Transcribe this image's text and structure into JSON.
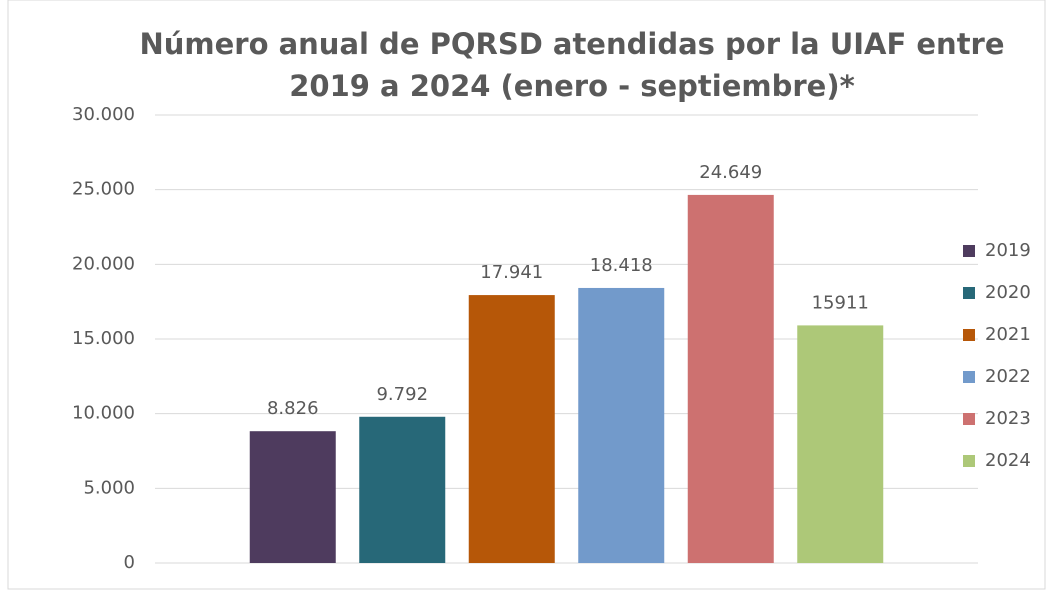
{
  "chart_data": {
    "type": "bar",
    "title": [
      "Número anual de PQRSD atendidas por la UIAF entre",
      "2019 a 2024 (enero - septiembre)*"
    ],
    "series": [
      {
        "name": "2019",
        "color": "#4e3b5e",
        "values": [
          8826
        ],
        "value_labels": [
          "8.826"
        ]
      },
      {
        "name": "2020",
        "color": "#276878",
        "values": [
          9792
        ],
        "value_labels": [
          "9.792"
        ]
      },
      {
        "name": "2021",
        "color": "#b65708",
        "values": [
          17941
        ],
        "value_labels": [
          "17.941"
        ]
      },
      {
        "name": "2022",
        "color": "#729acb",
        "values": [
          18418
        ],
        "value_labels": [
          "18.418"
        ]
      },
      {
        "name": "2023",
        "color": "#cd7170",
        "values": [
          24649
        ],
        "value_labels": [
          "24.649"
        ]
      },
      {
        "name": "2024",
        "color": "#adc878",
        "values": [
          15911
        ],
        "value_labels": [
          "15911"
        ]
      }
    ],
    "ylim": [
      0,
      30000
    ],
    "yticks": [
      0,
      {
        "value": 5000,
        "label": "5.000"
      },
      {
        "value": 10000,
        "label": "10.000"
      },
      {
        "value": 15000,
        "label": "15.000"
      },
      {
        "value": 20000,
        "label": "20.000"
      },
      {
        "value": 25000,
        "label": "25.000"
      },
      {
        "value": 30000,
        "label": "30.000"
      }
    ],
    "grid": true,
    "legend": "right"
  }
}
